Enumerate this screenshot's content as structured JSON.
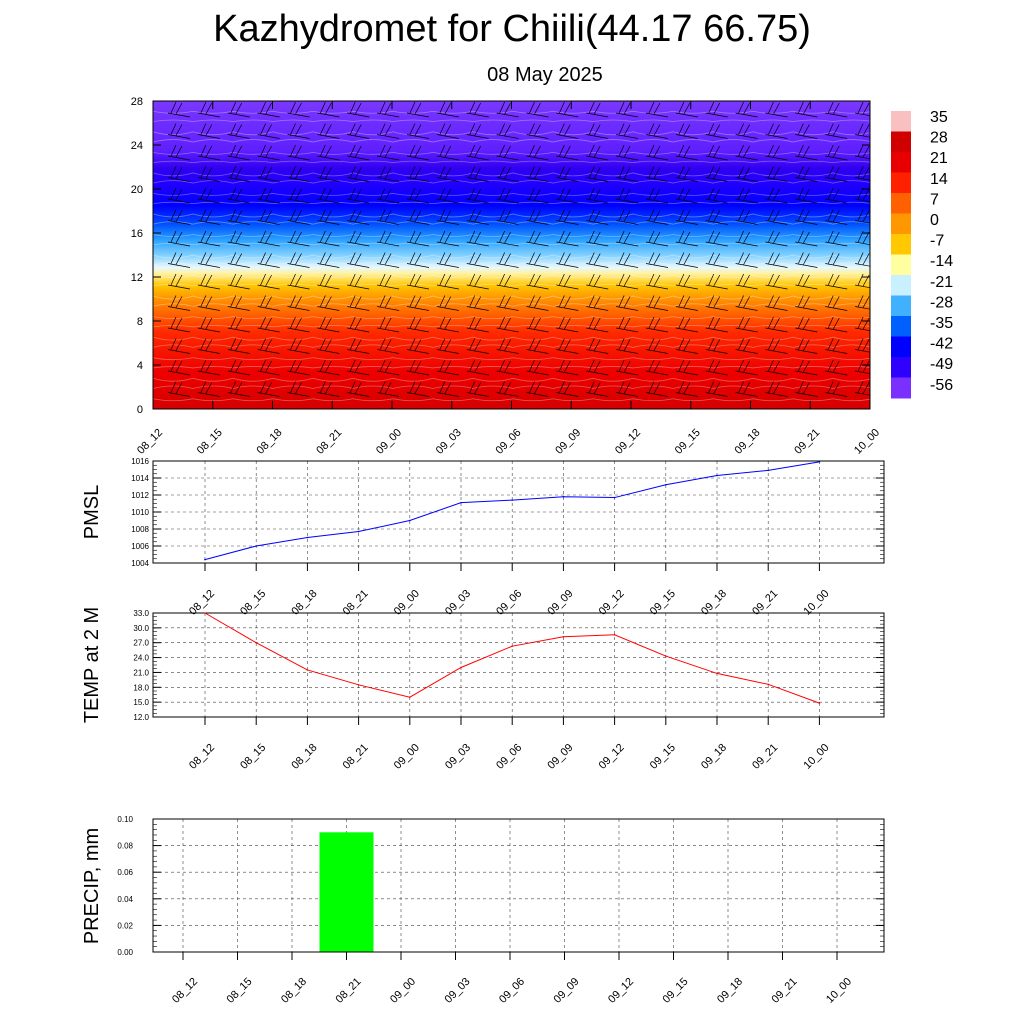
{
  "title": "Kazhydromet for Chiili(44.17 66.75)",
  "subtitle": "08 May 2025",
  "colors": {
    "pmsl_line": "#0000ff",
    "temp_line": "#ff0000",
    "precip_bar": "#00ff00",
    "contour_palette": [
      "#f8c0c0",
      "#d00000",
      "#e80000",
      "#ff2000",
      "#ff6000",
      "#ff9800",
      "#ffc800",
      "#ffffa0",
      "#c8f0ff",
      "#40b0ff",
      "#0060ff",
      "#0000ff",
      "#3000ff",
      "#7a30ff"
    ]
  },
  "chart_data": [
    {
      "type": "heatmap",
      "name": "vertical-cross-section",
      "x_ticks": [
        "08_12",
        "08_15",
        "08_18",
        "08_21",
        "09_00",
        "09_03",
        "09_06",
        "09_09",
        "09_12",
        "09_15",
        "09_18",
        "09_21",
        "10_00"
      ],
      "y_ticks": [
        "0",
        "4",
        "8",
        "12",
        "16",
        "20",
        "24",
        "28"
      ],
      "ylim": [
        0,
        28
      ],
      "colorbar_labels": [
        "35",
        "28",
        "21",
        "14",
        "7",
        "0",
        "-7",
        "-14",
        "-21",
        "-28",
        "-35",
        "-42",
        "-49",
        "-56"
      ],
      "wind_barbs": true
    },
    {
      "type": "line",
      "name": "pmsl",
      "ylabel": "PMSL",
      "x": [
        "08_12",
        "08_15",
        "08_18",
        "08_21",
        "09_00",
        "09_03",
        "09_06",
        "09_09",
        "09_12",
        "09_15",
        "09_18",
        "09_21",
        "10_00"
      ],
      "values": [
        1004.4,
        1006.0,
        1007.0,
        1007.7,
        1009.0,
        1011.1,
        1011.4,
        1011.8,
        1011.7,
        1013.2,
        1014.3,
        1014.9,
        1015.9
      ],
      "ylim": [
        1004,
        1016
      ],
      "y_ticks": [
        "1004",
        "1006",
        "1008",
        "1010",
        "1012",
        "1014",
        "1016"
      ],
      "grid": true
    },
    {
      "type": "line",
      "name": "temp",
      "ylabel": "TEMP at 2 M",
      "x": [
        "08_12",
        "08_15",
        "08_18",
        "08_21",
        "09_00",
        "09_03",
        "09_06",
        "09_09",
        "09_12",
        "09_15",
        "09_18",
        "09_21",
        "10_00"
      ],
      "values": [
        33.0,
        27.0,
        21.5,
        18.5,
        16.0,
        22.0,
        26.3,
        28.2,
        28.6,
        24.3,
        20.8,
        18.6,
        14.8
      ],
      "ylim": [
        12,
        33
      ],
      "y_ticks": [
        "12.0",
        "15.0",
        "18.0",
        "21.0",
        "24.0",
        "27.0",
        "30.0",
        "33.0"
      ],
      "grid": true
    },
    {
      "type": "bar",
      "name": "precip",
      "ylabel": "PRECIP, mm",
      "categories": [
        "08_12",
        "08_15",
        "08_18",
        "08_21",
        "09_00",
        "09_03",
        "09_06",
        "09_09",
        "09_12",
        "09_15",
        "09_18",
        "09_21",
        "10_00"
      ],
      "values": [
        0,
        0,
        0,
        0.09,
        0,
        0,
        0,
        0,
        0,
        0,
        0,
        0,
        0
      ],
      "ylim": [
        0,
        0.1
      ],
      "y_ticks": [
        "0.00",
        "0.02",
        "0.04",
        "0.06",
        "0.08",
        "0.10"
      ],
      "grid": true
    }
  ]
}
